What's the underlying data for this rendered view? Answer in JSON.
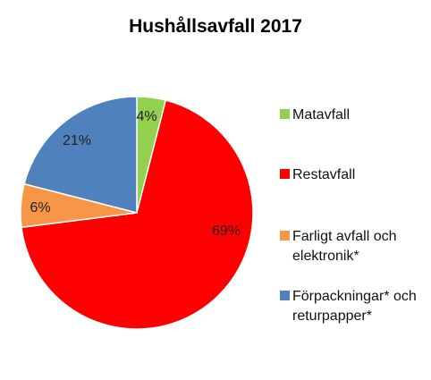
{
  "chart_data": {
    "type": "pie",
    "title": "Hushållsavfall 2017",
    "slices": [
      {
        "name": "Matavfall",
        "value": 4,
        "label": "4%",
        "color": "#92d050"
      },
      {
        "name": "Restavfall",
        "value": 69,
        "label": "69%",
        "color": "#ff0000"
      },
      {
        "name": "Farligt avfall och elektronik*",
        "value": 6,
        "label": "6%",
        "color": "#f79646"
      },
      {
        "name": "Förpackningar* och returpapper*",
        "value": 21,
        "label": "21%",
        "color": "#4f81bd"
      }
    ],
    "legend_position": "right"
  }
}
